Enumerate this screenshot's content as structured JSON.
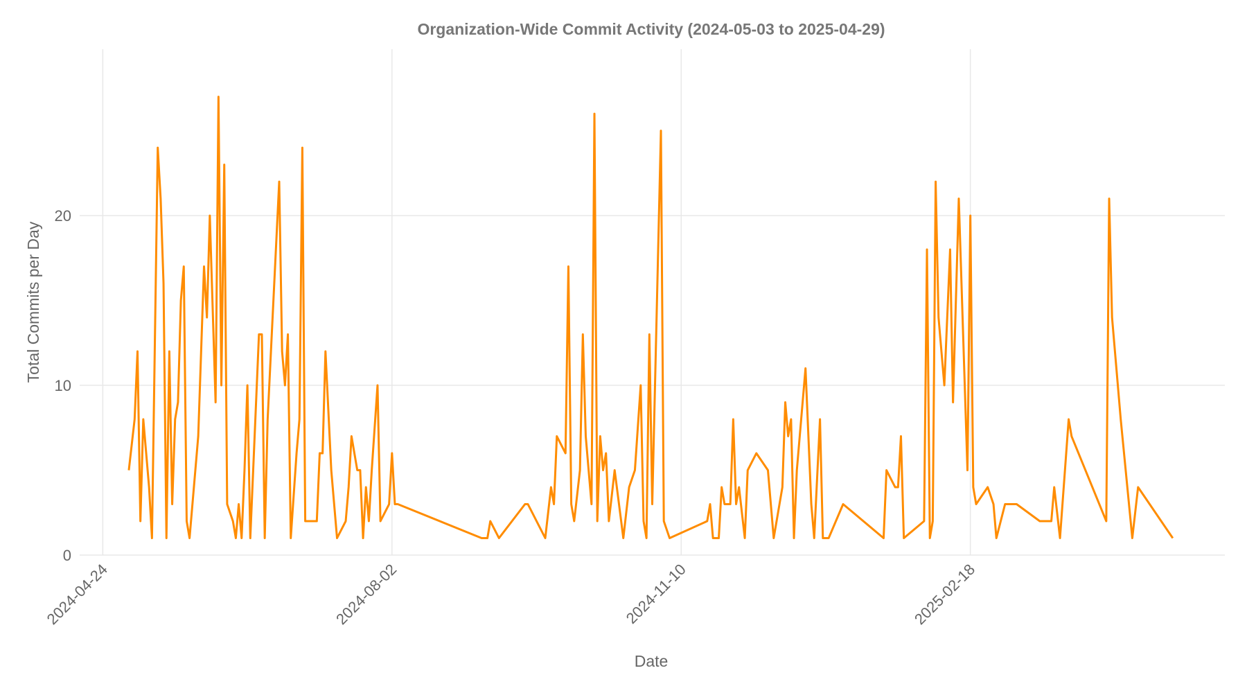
{
  "chart_data": {
    "type": "line",
    "title": "Organization-Wide Commit Activity (2024-05-03 to 2025-04-29)",
    "x_label": "Date",
    "y_label": "Total Commits per Day",
    "color": "#ff8c00",
    "grid": true,
    "x": [
      "2024-05-03",
      "2024-05-05",
      "2024-05-06",
      "2024-05-07",
      "2024-05-08",
      "2024-05-10",
      "2024-05-11",
      "2024-05-13",
      "2024-05-14",
      "2024-05-15",
      "2024-05-16",
      "2024-05-17",
      "2024-05-18",
      "2024-05-19",
      "2024-05-20",
      "2024-05-21",
      "2024-05-22",
      "2024-05-23",
      "2024-05-24",
      "2024-05-27",
      "2024-05-29",
      "2024-05-30",
      "2024-05-31",
      "2024-06-02",
      "2024-06-03",
      "2024-06-04",
      "2024-06-05",
      "2024-06-06",
      "2024-06-08",
      "2024-06-09",
      "2024-06-10",
      "2024-06-11",
      "2024-06-12",
      "2024-06-13",
      "2024-06-14",
      "2024-06-17",
      "2024-06-18",
      "2024-06-19",
      "2024-06-20",
      "2024-06-24",
      "2024-06-25",
      "2024-06-26",
      "2024-06-27",
      "2024-06-28",
      "2024-06-30",
      "2024-07-01",
      "2024-07-02",
      "2024-07-03",
      "2024-07-07",
      "2024-07-08",
      "2024-07-09",
      "2024-07-10",
      "2024-07-12",
      "2024-07-14",
      "2024-07-17",
      "2024-07-18",
      "2024-07-19",
      "2024-07-21",
      "2024-07-22",
      "2024-07-23",
      "2024-07-24",
      "2024-07-25",
      "2024-07-26",
      "2024-07-28",
      "2024-07-29",
      "2024-08-01",
      "2024-08-02",
      "2024-08-03",
      "2024-08-04",
      "2024-09-02",
      "2024-09-04",
      "2024-09-05",
      "2024-09-08",
      "2024-09-17",
      "2024-09-18",
      "2024-09-24",
      "2024-09-26",
      "2024-09-27",
      "2024-09-28",
      "2024-10-01",
      "2024-10-02",
      "2024-10-03",
      "2024-10-04",
      "2024-10-06",
      "2024-10-07",
      "2024-10-08",
      "2024-10-10",
      "2024-10-11",
      "2024-10-12",
      "2024-10-13",
      "2024-10-14",
      "2024-10-15",
      "2024-10-16",
      "2024-10-18",
      "2024-10-21",
      "2024-10-23",
      "2024-10-25",
      "2024-10-27",
      "2024-10-28",
      "2024-10-29",
      "2024-10-30",
      "2024-10-31",
      "2024-11-03",
      "2024-11-04",
      "2024-11-06",
      "2024-11-19",
      "2024-11-20",
      "2024-11-21",
      "2024-11-23",
      "2024-11-24",
      "2024-11-25",
      "2024-11-27",
      "2024-11-28",
      "2024-11-29",
      "2024-11-30",
      "2024-12-02",
      "2024-12-03",
      "2024-12-06",
      "2024-12-10",
      "2024-12-12",
      "2024-12-15",
      "2024-12-16",
      "2024-12-17",
      "2024-12-18",
      "2024-12-19",
      "2024-12-20",
      "2024-12-23",
      "2024-12-25",
      "2024-12-26",
      "2024-12-28",
      "2024-12-29",
      "2024-12-31",
      "2025-01-05",
      "2025-01-19",
      "2025-01-20",
      "2025-01-23",
      "2025-01-24",
      "2025-01-25",
      "2025-01-26",
      "2025-02-02",
      "2025-02-03",
      "2025-02-04",
      "2025-02-05",
      "2025-02-06",
      "2025-02-07",
      "2025-02-09",
      "2025-02-11",
      "2025-02-12",
      "2025-02-14",
      "2025-02-17",
      "2025-02-18",
      "2025-02-19",
      "2025-02-20",
      "2025-02-24",
      "2025-02-26",
      "2025-02-27",
      "2025-03-02",
      "2025-03-06",
      "2025-03-14",
      "2025-03-18",
      "2025-03-19",
      "2025-03-21",
      "2025-03-24",
      "2025-03-25",
      "2025-04-06",
      "2025-04-07",
      "2025-04-08",
      "2025-04-11",
      "2025-04-15",
      "2025-04-17",
      "2025-04-29"
    ],
    "values": [
      5,
      8,
      12,
      2,
      8,
      4,
      1,
      24,
      21,
      16,
      1,
      12,
      3,
      8,
      9,
      15,
      17,
      2,
      1,
      7,
      17,
      14,
      20,
      9,
      27,
      10,
      23,
      3,
      2,
      1,
      3,
      1,
      5,
      10,
      1,
      13,
      13,
      1,
      8,
      22,
      12,
      10,
      13,
      1,
      6,
      8,
      24,
      2,
      2,
      6,
      6,
      12,
      5,
      1,
      2,
      4,
      7,
      5,
      5,
      1,
      4,
      2,
      5,
      10,
      2,
      3,
      6,
      3,
      3,
      1,
      1,
      2,
      1,
      3,
      3,
      1,
      4,
      3,
      7,
      6,
      17,
      3,
      2,
      5,
      13,
      7,
      3,
      26,
      2,
      7,
      5,
      6,
      2,
      5,
      1,
      4,
      5,
      10,
      2,
      1,
      13,
      3,
      25,
      2,
      1,
      2,
      3,
      1,
      1,
      4,
      3,
      3,
      8,
      3,
      4,
      1,
      5,
      6,
      5,
      1,
      4,
      9,
      7,
      8,
      1,
      5,
      11,
      3,
      1,
      8,
      1,
      1,
      3,
      1,
      5,
      4,
      4,
      7,
      1,
      2,
      18,
      1,
      2,
      22,
      14,
      10,
      18,
      9,
      21,
      5,
      20,
      4,
      3,
      4,
      3,
      1,
      3,
      3,
      2,
      2,
      4,
      1,
      8,
      7,
      2,
      21,
      14,
      8,
      1,
      4,
      1
    ],
    "xlim": [
      "2024-04-16",
      "2025-05-17"
    ],
    "xticks": [
      "2024-04-24",
      "2024-08-02",
      "2024-11-10",
      "2025-02-18"
    ],
    "ylim": [
      0,
      29.8
    ],
    "yticks": [
      0,
      10,
      20
    ]
  }
}
